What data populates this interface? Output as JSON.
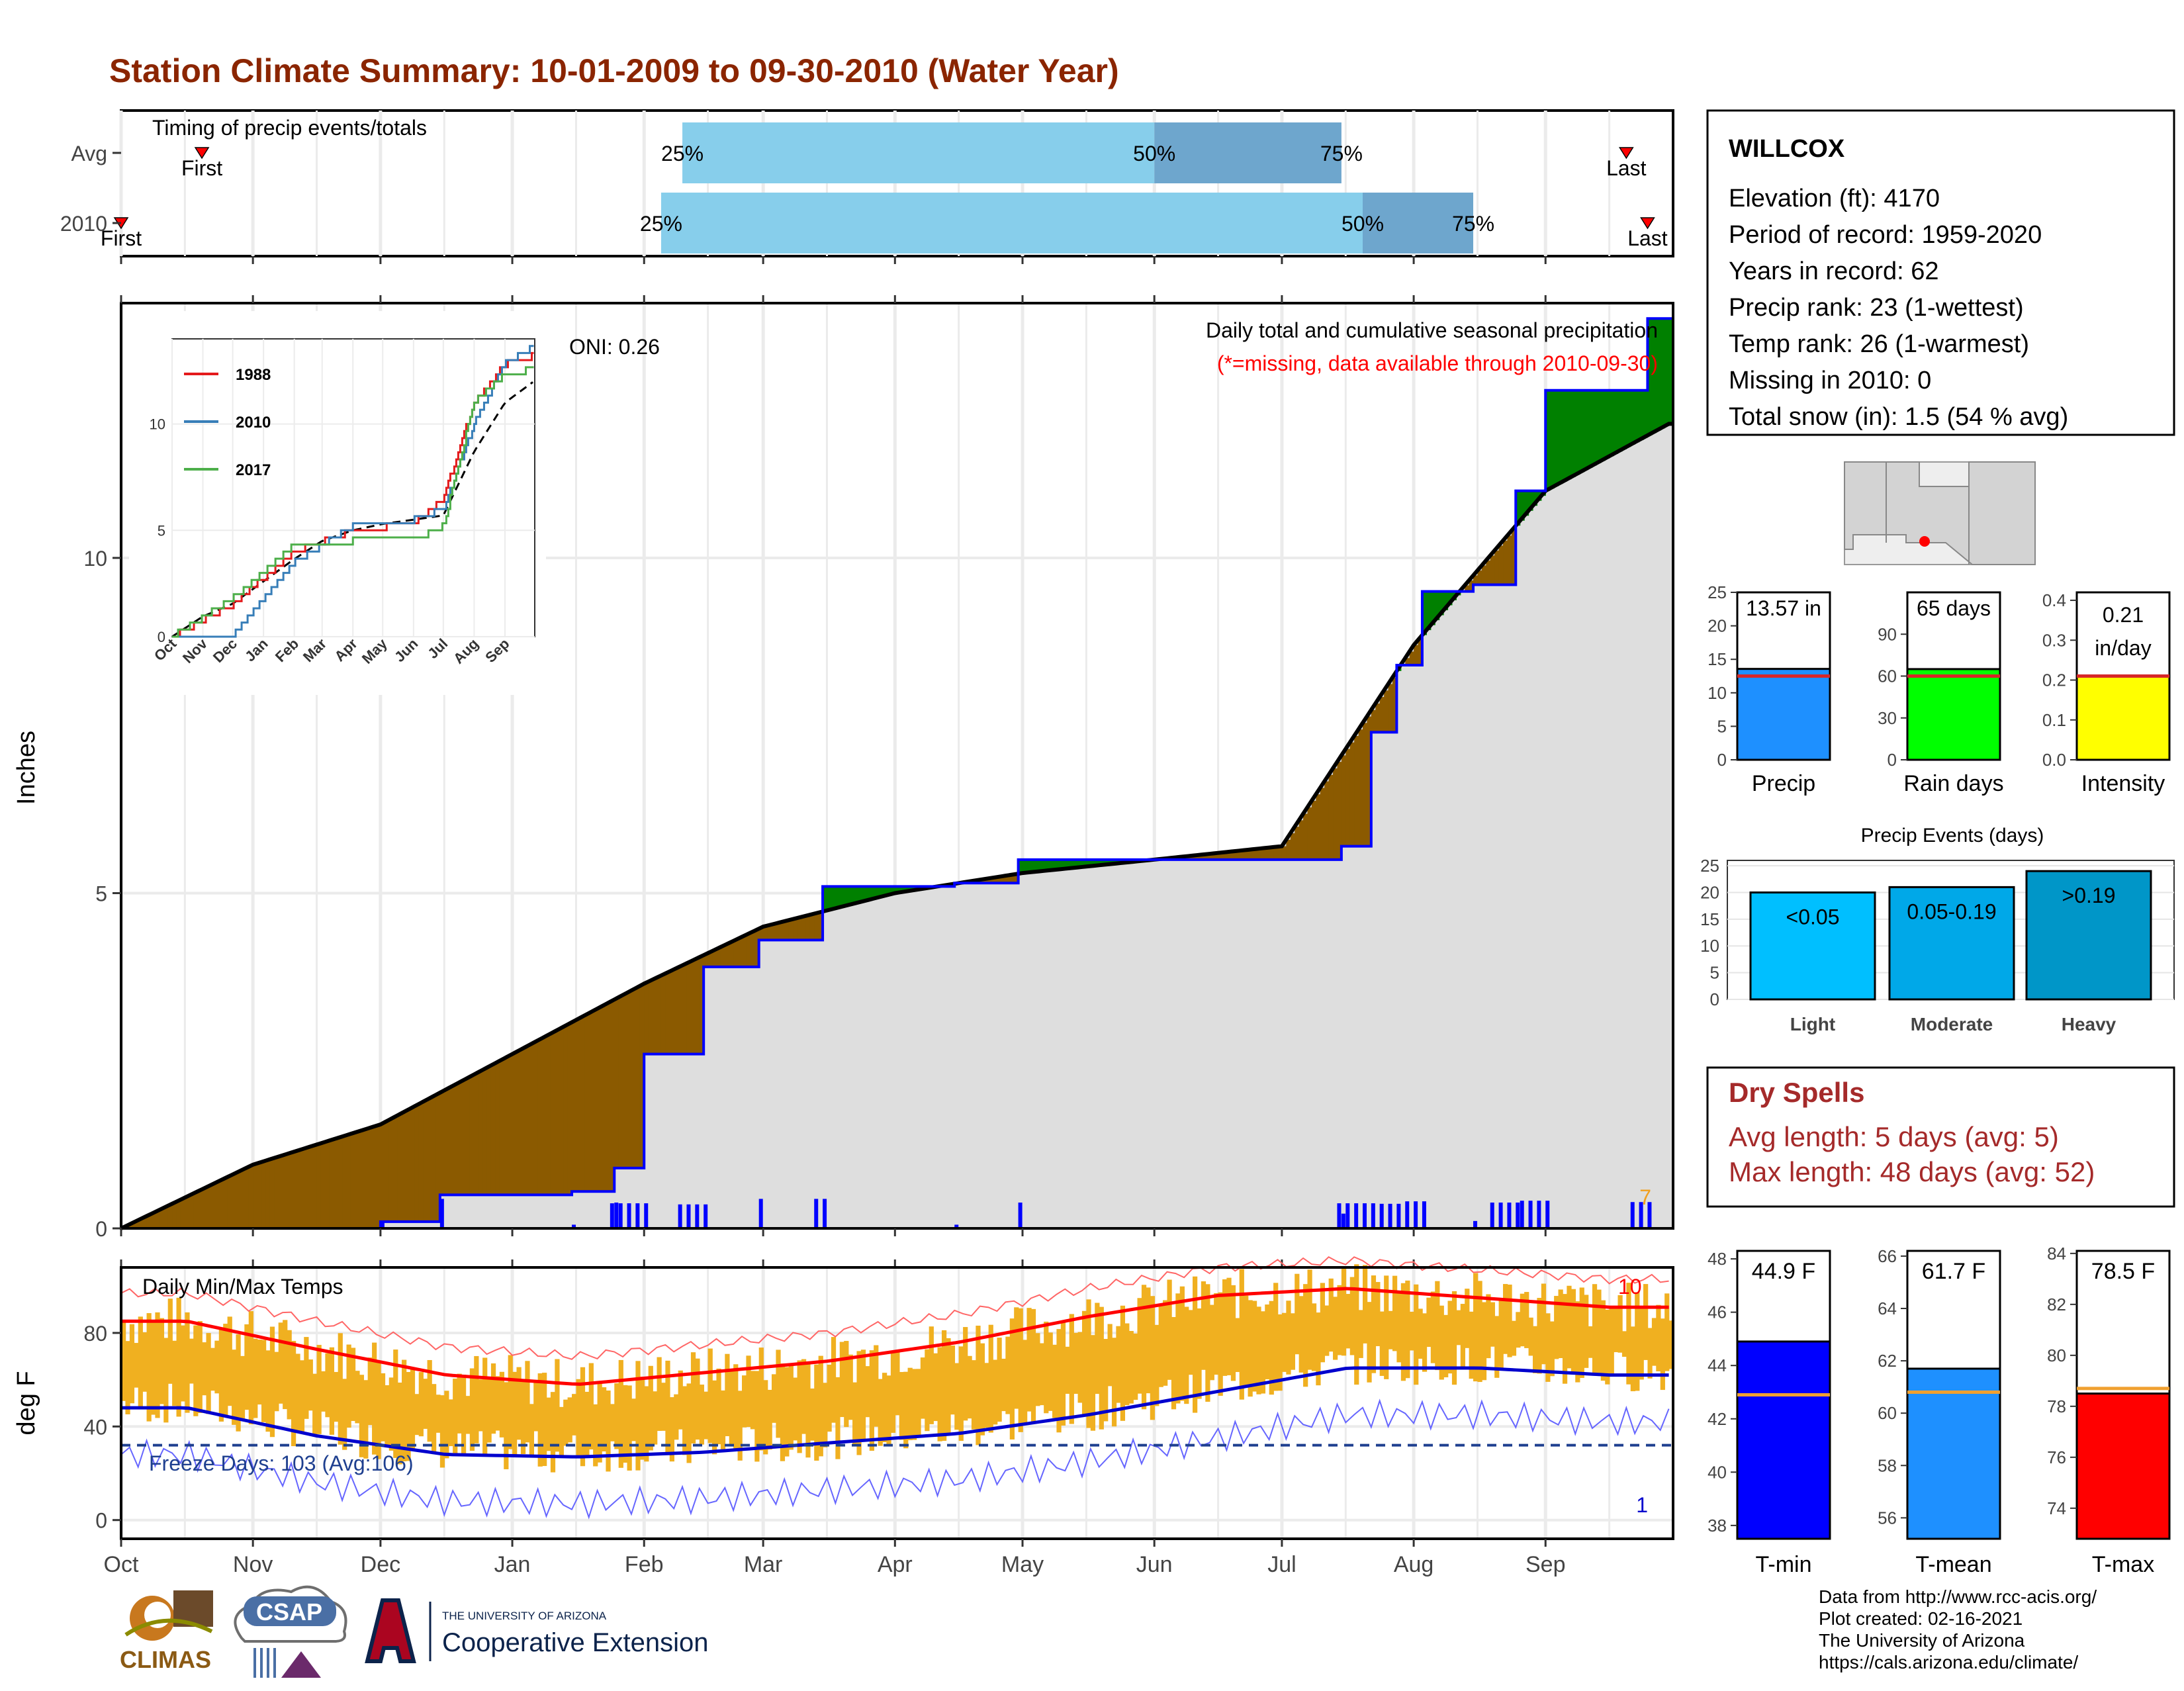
{
  "title": "Station Climate Summary: 10-01-2009 to 09-30-2010 (Water Year)",
  "months": [
    "Oct",
    "Nov",
    "Dec",
    "Jan",
    "Feb",
    "Mar",
    "Apr",
    "May",
    "Jun",
    "Jul",
    "Aug",
    "Sep"
  ],
  "colors": {
    "title": "#8b2500",
    "dry": "#8b2500",
    "precip_obs": "#0000ff",
    "brown": "#8b5a00",
    "green": "#008000",
    "normal_fill": "#dedede",
    "tmax": "#ff0000",
    "tmin": "#0000cd",
    "range": "#f0b020"
  },
  "timing": {
    "panel_title": "Timing of precip events/totals",
    "rows": [
      {
        "label": "Avg",
        "first_label": "First",
        "last_label": "Last",
        "p25": "25%",
        "p50": "50%",
        "p75": "75%",
        "first": "Oct 20",
        "q25": "Feb 10",
        "q50": "Jun 1",
        "q75": "Jul 15",
        "last": "Sep 20"
      },
      {
        "label": "2010",
        "first_label": "First",
        "last_label": "Last",
        "p25": "25%",
        "p50": "50%",
        "p75": "75%",
        "first": "Oct 1",
        "q25": "Feb 5",
        "q50": "Jul 20",
        "q75": "Aug 15",
        "last": "Sep 25"
      }
    ]
  },
  "precip": {
    "ylabel": "Inches",
    "yticks": [
      "0",
      "5",
      "10"
    ],
    "title_line1": "Daily total and cumulative seasonal precipitation",
    "title_line2": "(*=missing, data available through 2010-09-30)",
    "oni_label": "ONI: 0.26",
    "count_label": "7"
  },
  "inset": {
    "yticks": [
      "0",
      "5",
      "10"
    ],
    "xticks": [
      "Oct",
      "Nov",
      "Dec",
      "Jan",
      "Feb",
      "Mar",
      "Apr",
      "May",
      "Jun",
      "Jul",
      "Aug",
      "Sep"
    ],
    "legend": [
      "1988",
      "2010",
      "2017"
    ],
    "legend_colors": [
      "#e41a1c",
      "#377eb8",
      "#4daf4a"
    ]
  },
  "temps": {
    "panel_title": "Daily Min/Max Temps",
    "ylabel": "deg F",
    "yticks": [
      "0",
      "40",
      "80"
    ],
    "freeze_label": "Freeze Days: 103 (Avg:106)",
    "max_count": "10",
    "min_count": "1"
  },
  "station": {
    "name": "WILLCOX",
    "lines": [
      "Elevation (ft): 4170",
      "Period of record: 1959-2020",
      "Years in record: 62",
      "Precip rank: 23 (1-wettest)",
      "Temp rank: 26 (1-warmest)",
      "Missing in 2010: 0",
      "Total snow (in): 1.5 (54 % avg)"
    ]
  },
  "small_bars": [
    {
      "label": "Precip",
      "value_text": "13.57 in",
      "value": 13.57,
      "avg": 12.5,
      "max": 25,
      "ticks": [
        "0",
        "5",
        "10",
        "15",
        "20",
        "25"
      ],
      "color": "#1e90ff"
    },
    {
      "label": "Rain days",
      "value_text": "65 days",
      "value": 65,
      "avg": 60,
      "max": 120,
      "ticks": [
        "0",
        "30",
        "60",
        "90"
      ],
      "color": "#00ff00"
    },
    {
      "label": "Intensity",
      "value_text": "0.21 in/day",
      "value": 0.21,
      "avg": 0.21,
      "max": 0.42,
      "ticks": [
        "0.0",
        "0.1",
        "0.2",
        "0.3",
        "0.4"
      ],
      "color": "#ffff00"
    }
  ],
  "events": {
    "title": "Precip Events (days)",
    "yticks": [
      "0",
      "5",
      "10",
      "15",
      "20",
      "25"
    ],
    "bars": [
      {
        "label": "Light",
        "bin": "<0.05",
        "value": 20,
        "color": "#00bfff"
      },
      {
        "label": "Moderate",
        "bin": "0.05-0.19",
        "value": 21,
        "color": "#00a8e8"
      },
      {
        "label": "Heavy",
        "bin": ">0.19",
        "value": 24,
        "color": "#0096c8"
      }
    ]
  },
  "dry_spells": {
    "title": "Dry Spells",
    "avg_line": "Avg length: 5 days (avg: 5)",
    "max_line": "Max length: 48 days (avg: 52)"
  },
  "temp_bars": [
    {
      "label": "T-min",
      "value_text": "44.9 F",
      "value": 44.9,
      "avg": 42.9,
      "min": 37.5,
      "max": 48.3,
      "ticks": [
        "38",
        "40",
        "42",
        "44",
        "46",
        "48"
      ],
      "color": "#0000ff"
    },
    {
      "label": "T-mean",
      "value_text": "61.7 F",
      "value": 61.7,
      "avg": 60.8,
      "min": 55.2,
      "max": 66.2,
      "ticks": [
        "56",
        "58",
        "60",
        "62",
        "64",
        "66"
      ],
      "color": "#1e90ff"
    },
    {
      "label": "T-max",
      "value_text": "78.5 F",
      "value": 78.5,
      "avg": 78.7,
      "min": 72.8,
      "max": 84.1,
      "ticks": [
        "74",
        "76",
        "78",
        "80",
        "82",
        "84"
      ],
      "color": "#ff0000"
    }
  ],
  "footer": {
    "logo_climas": "CLIMAS",
    "logo_csap": "CSAP",
    "ua_small": "THE UNIVERSITY OF ARIZONA",
    "ua_big": "Cooperative Extension",
    "credits": [
      "Data from http://www.rcc-acis.org/",
      "Plot created: 02-16-2021",
      "The University of Arizona",
      "https://cals.arizona.edu/climate/"
    ]
  },
  "chart_data": [
    {
      "type": "bar",
      "title": "Timing of precip events/totals",
      "categories": [
        "Avg",
        "2010"
      ],
      "series": [
        {
          "name": "25%",
          "values": [
            "Feb 10",
            "Feb 5"
          ]
        },
        {
          "name": "50%",
          "values": [
            "Jun 1",
            "Jul 20"
          ]
        },
        {
          "name": "75%",
          "values": [
            "Jul 15",
            "Aug 15"
          ]
        }
      ]
    },
    {
      "type": "area",
      "title": "Daily total and cumulative seasonal precipitation",
      "ylabel": "Inches",
      "ylim": [
        0,
        13.8
      ],
      "series": [
        {
          "name": "observed cumulative",
          "x": [
            "Oct 1",
            "Dec 1",
            "Dec 15",
            "Jan 15",
            "Jan 25",
            "Feb 1",
            "Feb 15",
            "Feb 28",
            "Mar 15",
            "Apr 15",
            "Apr 30",
            "Jun 15",
            "Jul 15",
            "Jul 22",
            "Jul 28",
            "Aug 3",
            "Aug 15",
            "Aug 25",
            "Sep 1",
            "Sep 20",
            "Sep 25",
            "Sep 30"
          ],
          "values": [
            0,
            0.1,
            0.5,
            0.55,
            0.9,
            2.6,
            3.9,
            4.3,
            5.1,
            5.15,
            5.5,
            5.5,
            5.7,
            7.4,
            8.4,
            9.5,
            9.6,
            11.0,
            12.5,
            12.5,
            13.57,
            13.57
          ]
        },
        {
          "name": "average cumulative",
          "x": [
            "Oct 1",
            "Nov 1",
            "Dec 1",
            "Jan 1",
            "Feb 1",
            "Mar 1",
            "Apr 1",
            "May 1",
            "Jun 1",
            "Jul 1",
            "Aug 1",
            "Sep 1",
            "Sep 30"
          ],
          "values": [
            0,
            0.95,
            1.55,
            2.6,
            3.65,
            4.5,
            5.0,
            5.3,
            5.5,
            5.7,
            8.7,
            11.0,
            12.0
          ]
        },
        {
          "name": "1988",
          "x": [
            "Oct",
            "Dec",
            "Feb",
            "Apr",
            "Jun",
            "Jul",
            "Aug",
            "Sep",
            "Sep 30"
          ],
          "values": [
            0,
            1.5,
            4,
            5,
            5.3,
            6.5,
            11,
            12.8,
            13.2
          ]
        },
        {
          "name": "2010",
          "x": [
            "Oct",
            "Dec",
            "Feb",
            "Apr",
            "Jun",
            "Jul",
            "Aug",
            "Sep",
            "Sep 30"
          ],
          "values": [
            0,
            0.1,
            3.5,
            5.2,
            5.5,
            6.0,
            10,
            12.9,
            13.6
          ]
        },
        {
          "name": "2017",
          "x": [
            "Oct",
            "Dec",
            "Feb",
            "Apr",
            "Jun",
            "Jul",
            "Aug",
            "Sep",
            "Sep 30"
          ],
          "values": [
            0,
            1.8,
            4.3,
            4.5,
            4.5,
            5.2,
            11,
            12.3,
            12.6
          ]
        }
      ]
    },
    {
      "type": "line",
      "title": "Daily Min/Max Temps",
      "ylabel": "deg F",
      "ylim": [
        -8,
        108
      ],
      "categories": [
        "Oct",
        "Nov",
        "Dec",
        "Jan",
        "Feb",
        "Mar",
        "Apr",
        "May",
        "Jun",
        "Jul",
        "Aug",
        "Sep"
      ],
      "series": [
        {
          "name": "avg max",
          "values": [
            85,
            73,
            62,
            58,
            63,
            68,
            76,
            87,
            96,
            99,
            95,
            91
          ]
        },
        {
          "name": "avg min",
          "values": [
            48,
            36,
            28,
            27,
            29,
            33,
            37,
            45,
            55,
            65,
            65,
            62
          ]
        }
      ]
    },
    {
      "type": "bar",
      "title": "Precip Events (days)",
      "categories": [
        "Light",
        "Moderate",
        "Heavy"
      ],
      "values": [
        20,
        21,
        24
      ]
    },
    {
      "type": "bar",
      "categories": [
        "T-min",
        "T-mean",
        "T-max"
      ],
      "values": [
        44.9,
        61.7,
        78.5
      ]
    }
  ]
}
